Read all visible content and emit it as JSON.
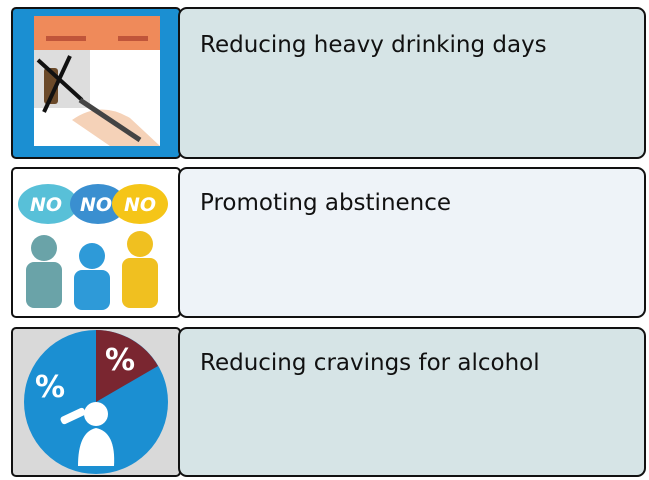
{
  "items": [
    {
      "label": "Reducing heavy drinking days"
    },
    {
      "label": "Promoting abstinence",
      "icon_text": [
        "NO",
        "NO",
        "NO"
      ]
    },
    {
      "label": "Reducing cravings for alcohol",
      "icon_text": [
        "%",
        "%"
      ]
    }
  ]
}
